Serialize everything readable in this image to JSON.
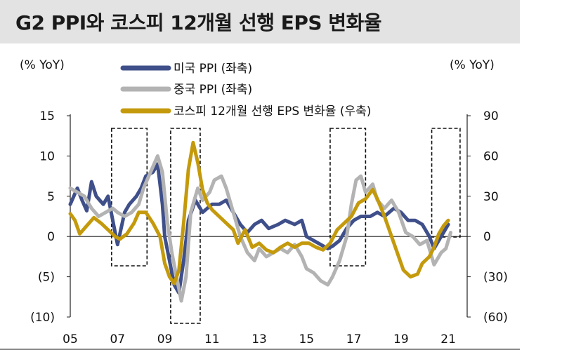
{
  "title": "G2 PPI와 코스피 12개월 선행 EPS 변화율",
  "left_unit": "(% YoY)",
  "right_unit": "(% YoY)",
  "chart_data": {
    "type": "line",
    "title": "G2 PPI와 코스피 12개월 선행 EPS 변화율",
    "x_ticks": [
      "05",
      "07",
      "09",
      "11",
      "13",
      "15",
      "17",
      "19",
      "21"
    ],
    "x_range": [
      2005.0,
      2021.8
    ],
    "y_left": {
      "label": "(% YoY)",
      "range": [
        -10,
        15
      ],
      "ticks": [
        15,
        10,
        5,
        0,
        -5,
        -10
      ],
      "tick_labels": [
        "15",
        "10",
        "5",
        "0",
        "(5)",
        "(10)"
      ]
    },
    "y_right": {
      "label": "(% YoY)",
      "range": [
        -60,
        90
      ],
      "ticks": [
        90,
        60,
        30,
        0,
        -30,
        -60
      ],
      "tick_labels": [
        "90",
        "60",
        "30",
        "0",
        "(30)",
        "(60)"
      ]
    },
    "legend_position": "top-center",
    "highlight_periods": [
      [
        2006.75,
        2008.25
      ],
      [
        2009.25,
        2010.5
      ],
      [
        2016.0,
        2017.5
      ],
      [
        2020.3,
        2021.5
      ]
    ],
    "series": [
      {
        "name": "미국 PPI (좌축)",
        "axis": "left",
        "color": "#3f4f8a",
        "points": [
          [
            2005.0,
            4.0
          ],
          [
            2005.3,
            6.0
          ],
          [
            2005.5,
            4.5
          ],
          [
            2005.7,
            3.2
          ],
          [
            2005.9,
            6.8
          ],
          [
            2006.1,
            5.0
          ],
          [
            2006.4,
            4.0
          ],
          [
            2006.6,
            5.0
          ],
          [
            2006.8,
            2.0
          ],
          [
            2007.0,
            -1.0
          ],
          [
            2007.3,
            3.0
          ],
          [
            2007.5,
            4.0
          ],
          [
            2007.8,
            5.0
          ],
          [
            2008.0,
            6.0
          ],
          [
            2008.2,
            7.5
          ],
          [
            2008.5,
            8.0
          ],
          [
            2008.7,
            9.0
          ],
          [
            2008.9,
            4.0
          ],
          [
            2009.0,
            0.0
          ],
          [
            2009.2,
            -3.0
          ],
          [
            2009.4,
            -6.0
          ],
          [
            2009.6,
            -7.0
          ],
          [
            2009.8,
            -3.0
          ],
          [
            2010.0,
            2.0
          ],
          [
            2010.3,
            4.5
          ],
          [
            2010.6,
            3.0
          ],
          [
            2010.8,
            3.5
          ],
          [
            2011.0,
            4.0
          ],
          [
            2011.3,
            4.0
          ],
          [
            2011.6,
            4.5
          ],
          [
            2011.9,
            3.0
          ],
          [
            2012.2,
            1.5
          ],
          [
            2012.5,
            0.5
          ],
          [
            2012.8,
            1.5
          ],
          [
            2013.1,
            2.0
          ],
          [
            2013.4,
            1.0
          ],
          [
            2013.8,
            1.5
          ],
          [
            2014.1,
            2.0
          ],
          [
            2014.5,
            1.5
          ],
          [
            2014.8,
            2.0
          ],
          [
            2015.0,
            0.0
          ],
          [
            2015.3,
            -0.5
          ],
          [
            2015.6,
            -1.0
          ],
          [
            2015.9,
            -1.5
          ],
          [
            2016.1,
            -1.2
          ],
          [
            2016.4,
            -0.5
          ],
          [
            2016.7,
            1.0
          ],
          [
            2017.0,
            2.0
          ],
          [
            2017.3,
            2.5
          ],
          [
            2017.7,
            2.5
          ],
          [
            2018.0,
            3.0
          ],
          [
            2018.3,
            2.5
          ],
          [
            2018.7,
            3.5
          ],
          [
            2019.0,
            3.0
          ],
          [
            2019.3,
            2.0
          ],
          [
            2019.6,
            2.0
          ],
          [
            2019.9,
            1.5
          ],
          [
            2020.2,
            0.0
          ],
          [
            2020.4,
            -1.5
          ],
          [
            2020.6,
            -0.5
          ],
          [
            2020.8,
            0.5
          ],
          [
            2021.0,
            1.5
          ]
        ]
      },
      {
        "name": "중국 PPI (좌축)",
        "axis": "left",
        "color": "#b3b3b3",
        "points": [
          [
            2005.0,
            6.0
          ],
          [
            2005.3,
            5.5
          ],
          [
            2005.6,
            5.0
          ],
          [
            2005.9,
            3.5
          ],
          [
            2006.2,
            2.5
          ],
          [
            2006.5,
            3.0
          ],
          [
            2006.8,
            3.5
          ],
          [
            2007.0,
            3.0
          ],
          [
            2007.3,
            2.5
          ],
          [
            2007.6,
            3.0
          ],
          [
            2007.9,
            4.0
          ],
          [
            2008.1,
            6.0
          ],
          [
            2008.4,
            8.0
          ],
          [
            2008.7,
            10.0
          ],
          [
            2008.9,
            8.0
          ],
          [
            2009.1,
            2.0
          ],
          [
            2009.3,
            -2.0
          ],
          [
            2009.5,
            -5.0
          ],
          [
            2009.7,
            -8.0
          ],
          [
            2009.9,
            -5.0
          ],
          [
            2010.1,
            3.0
          ],
          [
            2010.4,
            6.0
          ],
          [
            2010.6,
            4.5
          ],
          [
            2010.9,
            5.5
          ],
          [
            2011.1,
            7.0
          ],
          [
            2011.4,
            7.5
          ],
          [
            2011.6,
            6.0
          ],
          [
            2011.9,
            3.0
          ],
          [
            2012.2,
            0.0
          ],
          [
            2012.5,
            -2.0
          ],
          [
            2012.8,
            -3.0
          ],
          [
            2013.0,
            -1.5
          ],
          [
            2013.3,
            -2.5
          ],
          [
            2013.6,
            -2.0
          ],
          [
            2013.9,
            -1.5
          ],
          [
            2014.2,
            -2.0
          ],
          [
            2014.5,
            -1.0
          ],
          [
            2014.8,
            -2.5
          ],
          [
            2015.0,
            -4.0
          ],
          [
            2015.3,
            -4.5
          ],
          [
            2015.6,
            -5.5
          ],
          [
            2015.9,
            -6.0
          ],
          [
            2016.1,
            -5.0
          ],
          [
            2016.4,
            -3.0
          ],
          [
            2016.7,
            0.0
          ],
          [
            2016.9,
            4.0
          ],
          [
            2017.1,
            7.0
          ],
          [
            2017.3,
            7.5
          ],
          [
            2017.5,
            5.5
          ],
          [
            2017.8,
            6.5
          ],
          [
            2018.0,
            4.5
          ],
          [
            2018.3,
            3.5
          ],
          [
            2018.6,
            4.5
          ],
          [
            2018.9,
            3.0
          ],
          [
            2019.2,
            0.5
          ],
          [
            2019.5,
            0.0
          ],
          [
            2019.8,
            -1.0
          ],
          [
            2020.1,
            -0.5
          ],
          [
            2020.4,
            -3.5
          ],
          [
            2020.7,
            -2.0
          ],
          [
            2020.9,
            -1.5
          ],
          [
            2021.1,
            0.5
          ]
        ]
      },
      {
        "name": "코스피 12개월 선행 EPS 변화율 (우축)",
        "axis": "right",
        "color": "#c49a0c",
        "points": [
          [
            2005.0,
            17.0
          ],
          [
            2005.2,
            12.0
          ],
          [
            2005.4,
            2.0
          ],
          [
            2005.7,
            8.0
          ],
          [
            2006.0,
            14.0
          ],
          [
            2006.3,
            10.0
          ],
          [
            2006.6,
            5.0
          ],
          [
            2006.9,
            0.0
          ],
          [
            2007.1,
            -2.0
          ],
          [
            2007.4,
            2.0
          ],
          [
            2007.7,
            10.0
          ],
          [
            2007.9,
            18.0
          ],
          [
            2008.2,
            18.0
          ],
          [
            2008.5,
            10.0
          ],
          [
            2008.8,
            0.0
          ],
          [
            2009.0,
            -20.0
          ],
          [
            2009.2,
            -30.0
          ],
          [
            2009.4,
            -35.0
          ],
          [
            2009.6,
            -25.0
          ],
          [
            2009.8,
            10.0
          ],
          [
            2010.0,
            50.0
          ],
          [
            2010.2,
            70.0
          ],
          [
            2010.4,
            55.0
          ],
          [
            2010.6,
            35.0
          ],
          [
            2010.8,
            25.0
          ],
          [
            2011.0,
            20.0
          ],
          [
            2011.3,
            15.0
          ],
          [
            2011.6,
            10.0
          ],
          [
            2011.9,
            5.0
          ],
          [
            2012.1,
            -5.0
          ],
          [
            2012.4,
            5.0
          ],
          [
            2012.7,
            -8.0
          ],
          [
            2013.0,
            -5.0
          ],
          [
            2013.3,
            -10.0
          ],
          [
            2013.6,
            -12.0
          ],
          [
            2013.9,
            -8.0
          ],
          [
            2014.2,
            -5.0
          ],
          [
            2014.5,
            -8.0
          ],
          [
            2014.8,
            -5.0
          ],
          [
            2015.1,
            -5.0
          ],
          [
            2015.4,
            -8.0
          ],
          [
            2015.7,
            -10.0
          ],
          [
            2016.0,
            -5.0
          ],
          [
            2016.3,
            5.0
          ],
          [
            2016.6,
            10.0
          ],
          [
            2016.9,
            15.0
          ],
          [
            2017.2,
            25.0
          ],
          [
            2017.5,
            28.0
          ],
          [
            2017.8,
            35.0
          ],
          [
            2018.0,
            28.0
          ],
          [
            2018.3,
            15.0
          ],
          [
            2018.6,
            0.0
          ],
          [
            2018.9,
            -15.0
          ],
          [
            2019.1,
            -25.0
          ],
          [
            2019.4,
            -30.0
          ],
          [
            2019.7,
            -28.0
          ],
          [
            2019.9,
            -20.0
          ],
          [
            2020.2,
            -15.0
          ],
          [
            2020.4,
            -8.0
          ],
          [
            2020.6,
            2.0
          ],
          [
            2020.8,
            8.0
          ],
          [
            2021.0,
            12.0
          ]
        ]
      }
    ]
  }
}
